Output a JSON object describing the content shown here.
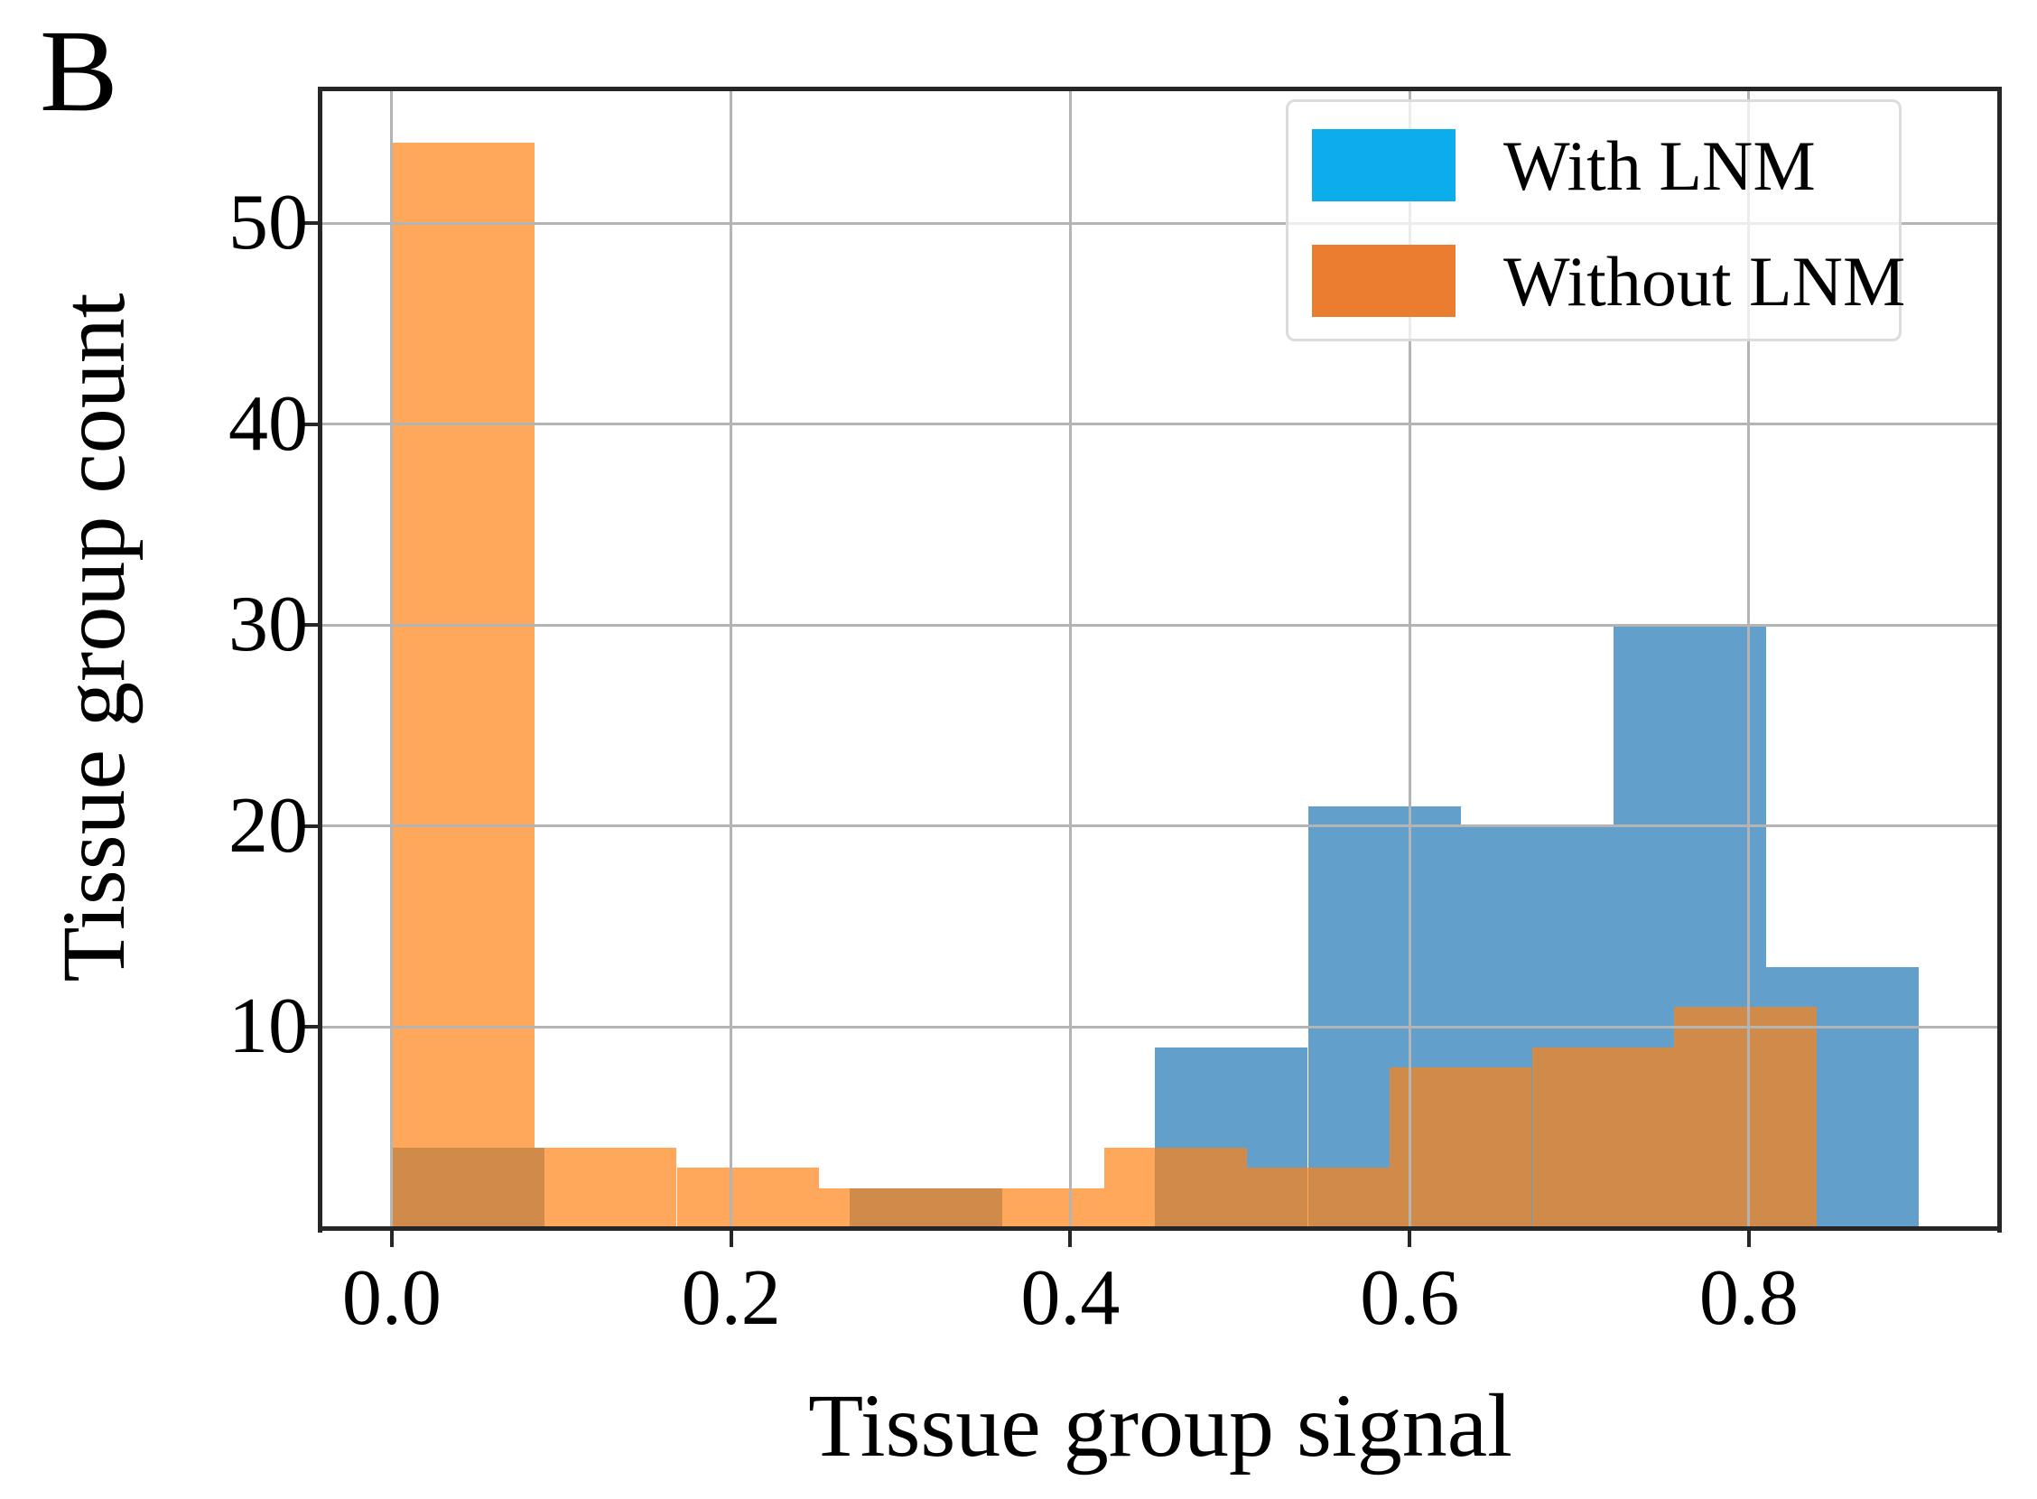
{
  "figure": {
    "panel_label": "B",
    "background": "#ffffff"
  },
  "chart_data": {
    "type": "histogram",
    "title": "",
    "xlabel": "Tissue group signal",
    "ylabel": "Tissue group count",
    "xlim": [
      -0.042,
      0.948
    ],
    "ylim": [
      0,
      56.7
    ],
    "x_ticks": [
      "0.0",
      "0.2",
      "0.4",
      "0.6",
      "0.8"
    ],
    "x_tick_values": [
      0.0,
      0.2,
      0.4,
      0.6,
      0.8
    ],
    "y_ticks": [
      "10",
      "20",
      "30",
      "40",
      "50"
    ],
    "y_tick_values": [
      10,
      20,
      30,
      40,
      50
    ],
    "grid": true,
    "grid_color": "#b4b4b4",
    "spine_color": "#262626",
    "legend": {
      "location": "upper right",
      "entries": [
        {
          "label": "With LNM",
          "swatch_color": "#0baeea"
        },
        {
          "label": "Without LNM",
          "swatch_color": "#eb7d31"
        }
      ]
    },
    "series": [
      {
        "name": "With LNM",
        "bin_start": 0.0,
        "bin_width": 0.09,
        "bin_edges": [
          0.0,
          0.09,
          0.18,
          0.27,
          0.36,
          0.45,
          0.54,
          0.63,
          0.72,
          0.81,
          0.9
        ],
        "counts": [
          4,
          0,
          0,
          2,
          0,
          9,
          21,
          20,
          30,
          13
        ],
        "fill": "#62a0cb"
      },
      {
        "name": "Without LNM",
        "bin_start": 0.0,
        "bin_width": 0.084,
        "bin_edges": [
          0.0,
          0.084,
          0.168,
          0.252,
          0.336,
          0.42,
          0.504,
          0.588,
          0.672,
          0.756,
          0.84
        ],
        "counts": [
          54,
          4,
          3,
          2,
          2,
          4,
          3,
          8,
          9,
          11
        ],
        "fill": "rgba(255,130,20,0.70)"
      }
    ]
  }
}
